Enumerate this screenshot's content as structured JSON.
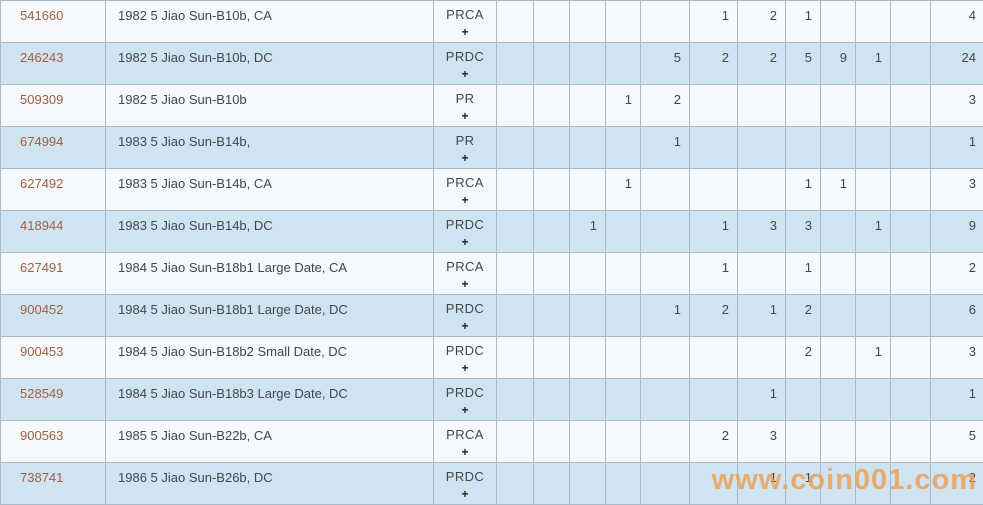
{
  "watermark": {
    "text": "www.coin001.com"
  },
  "expand_label": "+",
  "colors": {
    "row_light": "#f5f9fc",
    "row_blue": "#cfe3f1",
    "grid_border": "#a5bac6",
    "id_link": "#a0603f",
    "text": "#42474b",
    "watermark_orange": "#ea9f50"
  },
  "rows": [
    {
      "id": "541660",
      "name": "1982 5 Jiao Sun-B10b, CA",
      "code": "PRCA",
      "counts": [
        "",
        "",
        "",
        "",
        "",
        "1",
        "2",
        "1",
        "",
        "",
        ""
      ],
      "total": "4"
    },
    {
      "id": "246243",
      "name": "1982 5 Jiao Sun-B10b, DC",
      "code": "PRDC",
      "counts": [
        "",
        "",
        "",
        "",
        "5",
        "2",
        "2",
        "5",
        "9",
        "1",
        ""
      ],
      "total": "24"
    },
    {
      "id": "509309",
      "name": "1982 5 Jiao Sun-B10b",
      "code": "PR",
      "counts": [
        "",
        "",
        "",
        "1",
        "2",
        "",
        "",
        "",
        "",
        "",
        ""
      ],
      "total": "3"
    },
    {
      "id": "674994",
      "name": "1983 5 Jiao Sun-B14b,",
      "code": "PR",
      "counts": [
        "",
        "",
        "",
        "",
        "1",
        "",
        "",
        "",
        "",
        "",
        ""
      ],
      "total": "1"
    },
    {
      "id": "627492",
      "name": "1983 5 Jiao Sun-B14b, CA",
      "code": "PRCA",
      "counts": [
        "",
        "",
        "",
        "1",
        "",
        "",
        "",
        "1",
        "1",
        "",
        ""
      ],
      "total": "3"
    },
    {
      "id": "418944",
      "name": "1983 5 Jiao Sun-B14b, DC",
      "code": "PRDC",
      "counts": [
        "",
        "",
        "1",
        "",
        "",
        "1",
        "3",
        "3",
        "",
        "1",
        ""
      ],
      "total": "9"
    },
    {
      "id": "627491",
      "name": "1984 5 Jiao Sun-B18b1 Large Date, CA",
      "code": "PRCA",
      "counts": [
        "",
        "",
        "",
        "",
        "",
        "1",
        "",
        "1",
        "",
        "",
        ""
      ],
      "total": "2"
    },
    {
      "id": "900452",
      "name": "1984 5 Jiao Sun-B18b1 Large Date, DC",
      "code": "PRDC",
      "counts": [
        "",
        "",
        "",
        "",
        "1",
        "2",
        "1",
        "2",
        "",
        "",
        ""
      ],
      "total": "6"
    },
    {
      "id": "900453",
      "name": "1984 5 Jiao Sun-B18b2 Small Date, DC",
      "code": "PRDC",
      "counts": [
        "",
        "",
        "",
        "",
        "",
        "",
        "",
        "2",
        "",
        "1",
        ""
      ],
      "total": "3"
    },
    {
      "id": "528549",
      "name": "1984 5 Jiao Sun-B18b3 Large Date, DC",
      "code": "PRDC",
      "counts": [
        "",
        "",
        "",
        "",
        "",
        "",
        "1",
        "",
        "",
        "",
        ""
      ],
      "total": "1"
    },
    {
      "id": "900563",
      "name": "1985 5 Jiao Sun-B22b, CA",
      "code": "PRCA",
      "counts": [
        "",
        "",
        "",
        "",
        "",
        "2",
        "3",
        "",
        "",
        "",
        ""
      ],
      "total": "5"
    },
    {
      "id": "738741",
      "name": "1986 5 Jiao Sun-B26b, DC",
      "code": "PRDC",
      "counts": [
        "",
        "",
        "",
        "",
        "",
        "",
        "1",
        "1",
        "",
        "",
        ""
      ],
      "total": "2"
    }
  ]
}
